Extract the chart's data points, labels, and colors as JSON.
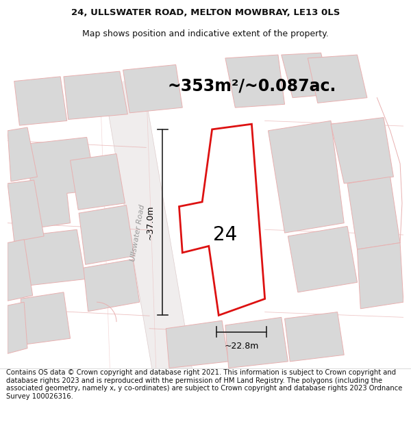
{
  "title_line1": "24, ULLSWATER ROAD, MELTON MOWBRAY, LE13 0LS",
  "title_line2": "Map shows position and indicative extent of the property.",
  "area_text": "~353m²/~0.087ac.",
  "number_label": "24",
  "width_label": "~22.8m",
  "height_label": "~37.0m",
  "road_label": "Ullswater Road",
  "footer_text": "Contains OS data © Crown copyright and database right 2021. This information is subject to Crown copyright and database rights 2023 and is reproduced with the permission of HM Land Registry. The polygons (including the associated geometry, namely x, y co-ordinates) are subject to Crown copyright and database rights 2023 Ordnance Survey 100026316.",
  "bg_color": "#f9f7f7",
  "plot_outline_color": "#e8b0b0",
  "building_fill": "#d8d8d8",
  "building_edge": "#e8b0b0",
  "highlight_fill": "#ffffff",
  "highlight_edge": "#dd1111",
  "highlight_lw": 2.0,
  "dim_color": "#222222",
  "title_fontsize": 9.5,
  "subtitle_fontsize": 9.0,
  "area_fontsize": 17,
  "number_fontsize": 20,
  "road_fontsize": 8,
  "footer_fontsize": 7.2
}
